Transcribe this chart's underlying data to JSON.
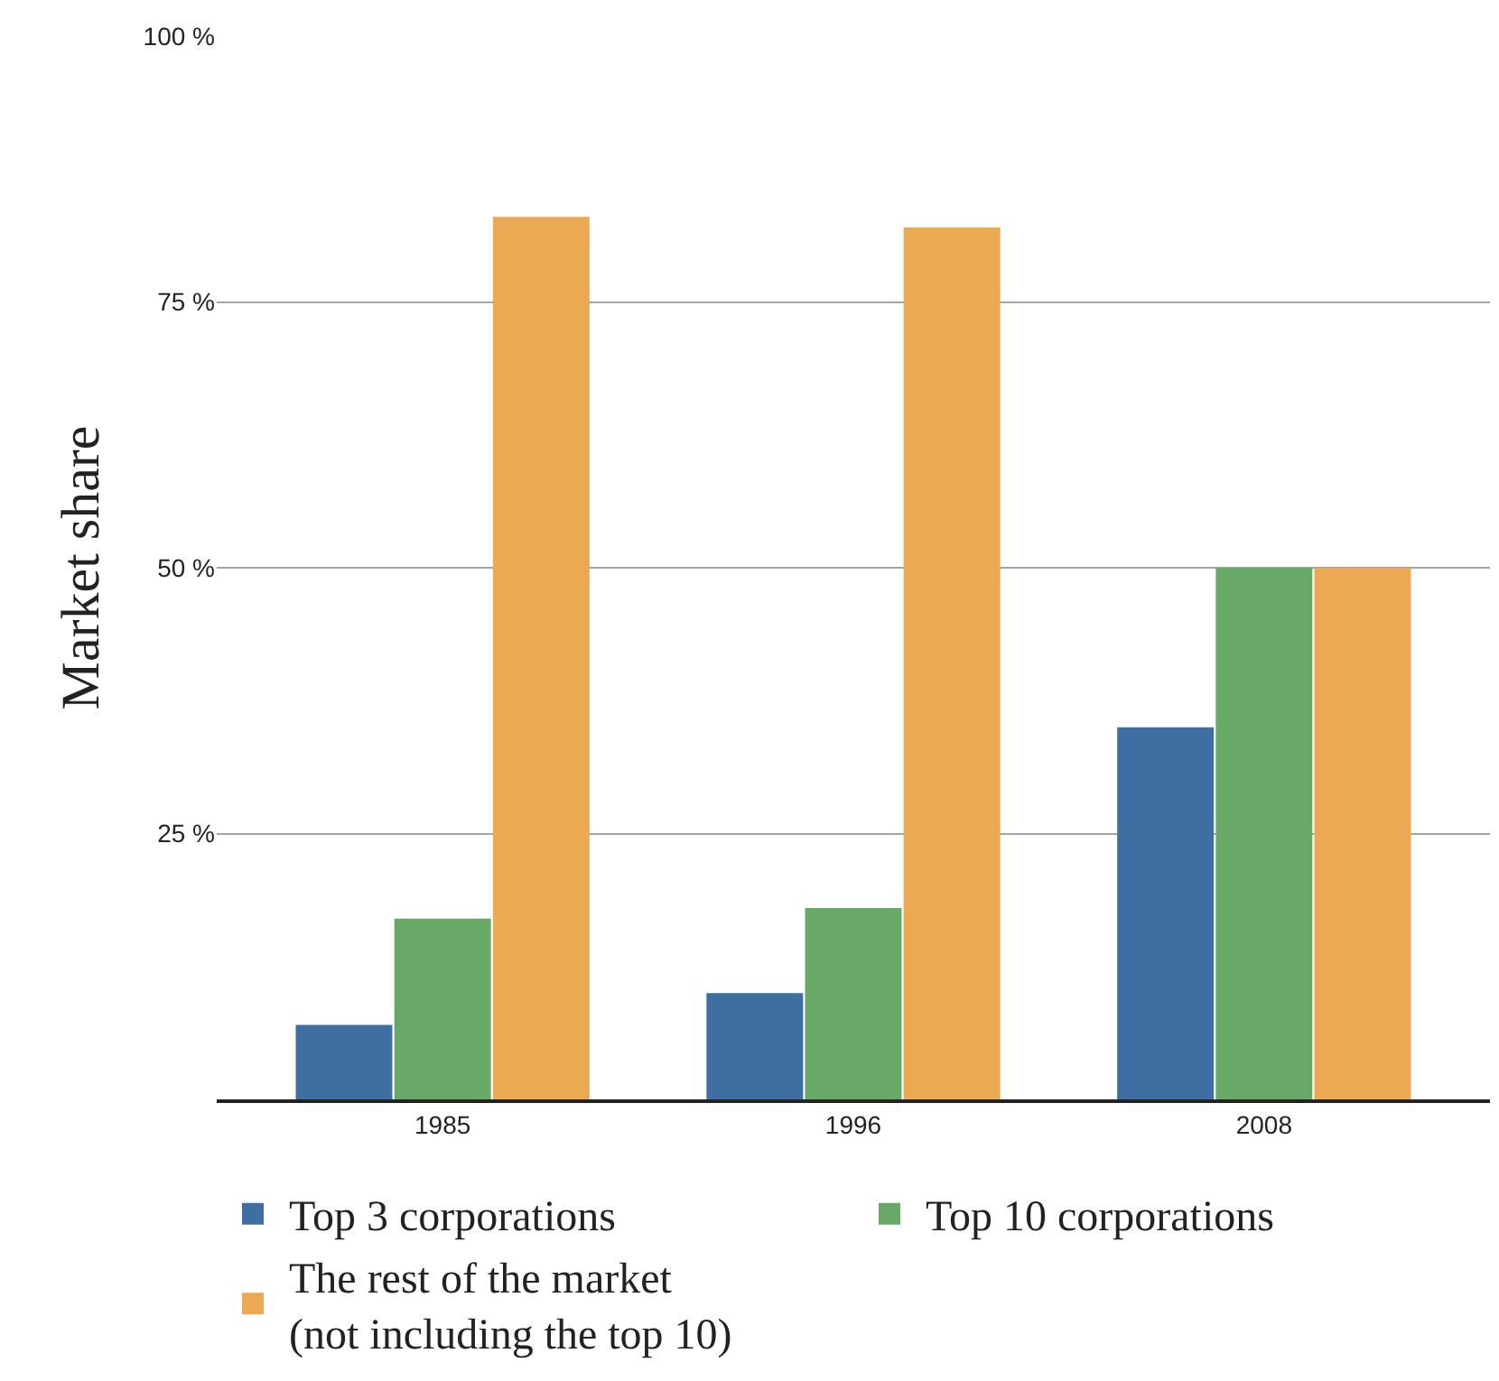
{
  "chart_data": {
    "type": "bar",
    "ylabel": "Market share",
    "categories": [
      "1985",
      "1996",
      "2008"
    ],
    "series": [
      {
        "name": "Top 3 corporations",
        "color": "#3f6fa2",
        "values": [
          7,
          10,
          35
        ]
      },
      {
        "name": "Top 10 corporations",
        "color": "#69a968",
        "values": [
          17,
          18,
          50
        ]
      },
      {
        "name": "The rest of the market\n(not including the top 10)",
        "color": "#eca954",
        "values": [
          83,
          82,
          50
        ]
      }
    ],
    "ylim": [
      0,
      100
    ],
    "yticks": [
      {
        "value": 25,
        "label": "25 %"
      },
      {
        "value": 50,
        "label": "50 %"
      },
      {
        "value": 75,
        "label": "75 %"
      },
      {
        "value": 100,
        "label": "100 %"
      }
    ],
    "grid": "y",
    "legend": "bottom"
  }
}
